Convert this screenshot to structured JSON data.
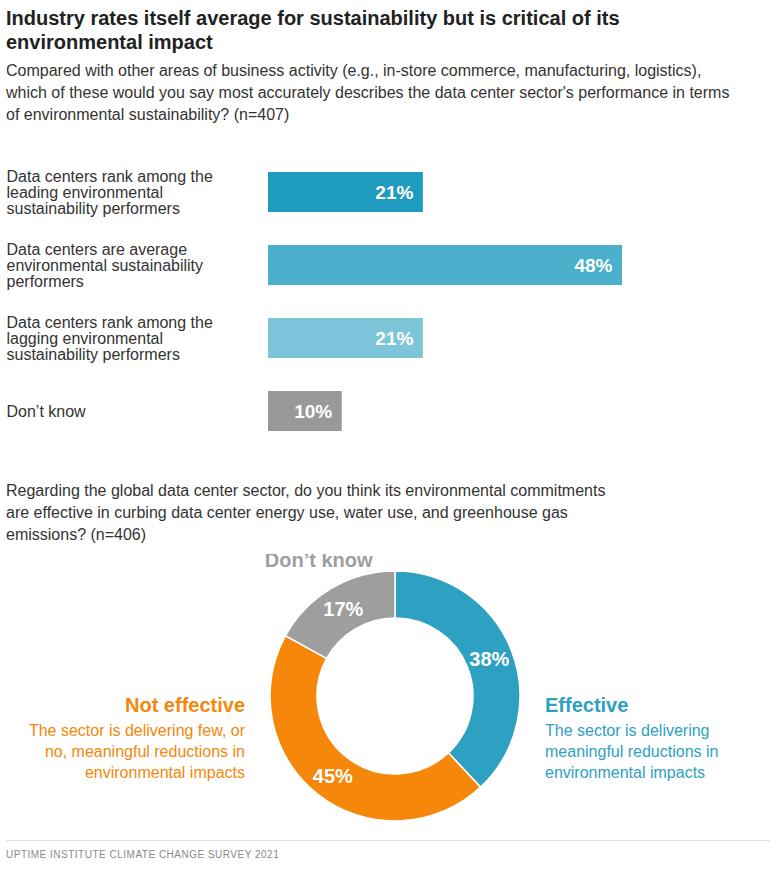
{
  "chart_data": [
    {
      "type": "bar",
      "title": "Industry rates itself average for sustainability but is critical of its environmental impact",
      "subtitle": "Compared with other areas of business activity (e.g., in-store commerce, manufacturing, logistics), which of these would you say most accurately describes the data center sector's performance in terms of environmental sustainability? (n=407)",
      "orientation": "horizontal",
      "categories": [
        "Data centers rank among the leading environmental sustainability performers",
        "Data centers are average environmental sustainability performers",
        "Data centers rank among the lagging environmental sustainability performers",
        "Don’t know"
      ],
      "values": [
        21,
        48,
        21,
        10
      ],
      "value_labels": [
        "21%",
        "48%",
        "21%",
        "10%"
      ],
      "colors": [
        "#1f9bbf",
        "#4bb0cc",
        "#7dc6da",
        "#999999"
      ],
      "data_labels": true,
      "tick_labels": false
    },
    {
      "type": "donut",
      "subtitle": "Regarding the global data center sector, do you think its environmental commitments are effective in curbing data center energy use, water use, and greenhouse gas emissions? (n=406)",
      "categories": [
        "Effective",
        "Not effective",
        "Don’t know"
      ],
      "values": [
        38,
        45,
        17
      ],
      "value_labels": [
        "38%",
        "45%",
        "17%"
      ],
      "colors": [
        "#2ea0c2",
        "#f5870a",
        "#9e9e9e"
      ],
      "data_labels": true,
      "annotations": [
        {
          "category": "Effective",
          "text": "The sector is delivering meaningful reductions in environmental impacts"
        },
        {
          "category": "Not effective",
          "text": "The sector is delivering few, or no, meaningful reductions in environmental impacts"
        }
      ],
      "source": "UPTIME INSTITUTE CLIMATE CHANGE SURVEY 2021"
    }
  ]
}
